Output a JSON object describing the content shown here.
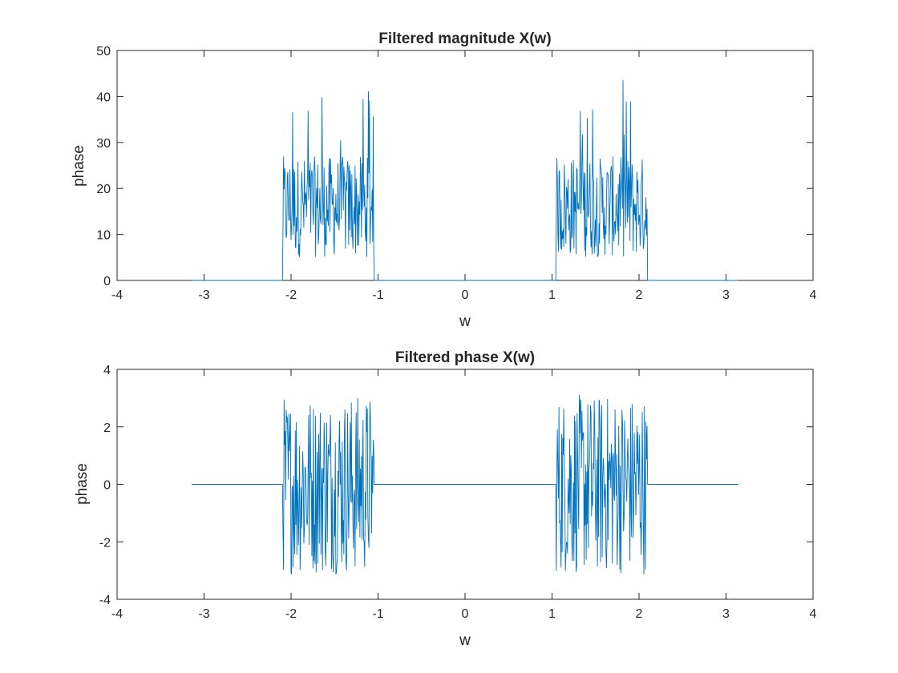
{
  "chart_data": [
    {
      "type": "line",
      "title": "Filtered magnitude X(w)",
      "xlabel": "w",
      "ylabel": "phase",
      "xlim": [
        -4,
        4
      ],
      "ylim": [
        0,
        50
      ],
      "xticks": [
        "-4",
        "-3",
        "-2",
        "-1",
        "0",
        "1",
        "2",
        "3",
        "4"
      ],
      "yticks": [
        "0",
        "10",
        "20",
        "30",
        "40",
        "50"
      ],
      "grid": false,
      "series": [
        {
          "color": "#0072bd",
          "x_range": [
            -3.1416,
            3.1416
          ],
          "passbands": [
            [
              -2.094,
              -1.047
            ],
            [
              1.047,
              2.094
            ]
          ],
          "stopband_value": 0,
          "passband_typical_range": [
            5,
            27
          ],
          "passband_mean": 15,
          "passband_peak": 44
        }
      ]
    },
    {
      "type": "line",
      "title": "Filtered phase X(w)",
      "xlabel": "w",
      "ylabel": "phase",
      "xlim": [
        -4,
        4
      ],
      "ylim": [
        -4,
        4
      ],
      "xticks": [
        "-4",
        "-3",
        "-2",
        "-1",
        "0",
        "1",
        "2",
        "3",
        "4"
      ],
      "yticks": [
        "-4",
        "-2",
        "0",
        "2",
        "4"
      ],
      "grid": false,
      "series": [
        {
          "color": "#0072bd",
          "x_range": [
            -3.1416,
            3.1416
          ],
          "passbands": [
            [
              -2.094,
              -1.047
            ],
            [
              1.047,
              2.094
            ]
          ],
          "stopband_value": 0,
          "passband_range": [
            -3.14,
            3.14
          ]
        }
      ]
    }
  ]
}
